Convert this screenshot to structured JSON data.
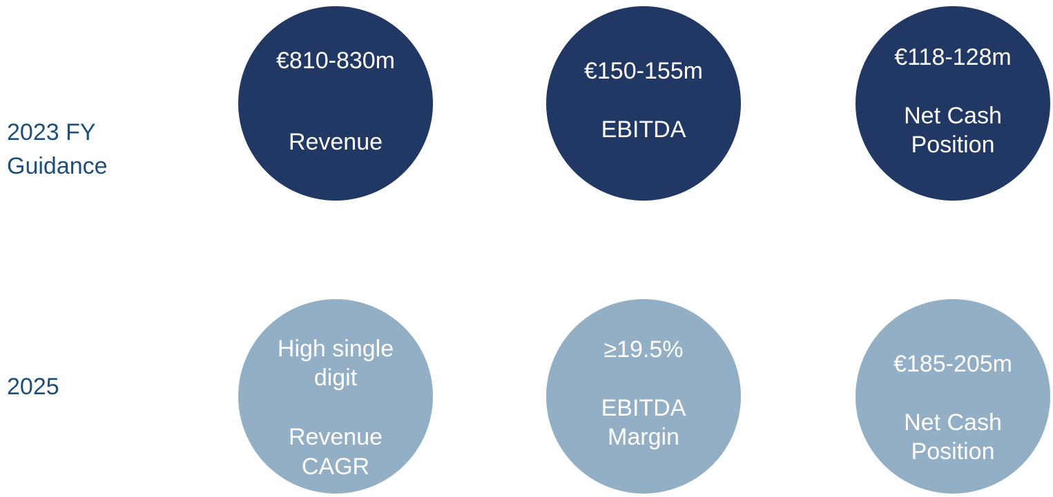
{
  "rows": [
    {
      "label": [
        "2023 FY",
        "Guidance"
      ],
      "circles": [
        {
          "value": [
            "€810-830m"
          ],
          "caption": [
            "Revenue"
          ]
        },
        {
          "value": [
            "€150-155m"
          ],
          "caption": [
            "EBITDA"
          ]
        },
        {
          "value": [
            "€118-128m"
          ],
          "caption": [
            "Net Cash",
            "Position"
          ]
        }
      ]
    },
    {
      "label": [
        "2025"
      ],
      "circles": [
        {
          "value": [
            "High single",
            "digit"
          ],
          "caption": [
            "Revenue",
            "CAGR"
          ]
        },
        {
          "value": [
            "≥19.5%"
          ],
          "caption": [
            "EBITDA",
            "Margin"
          ]
        },
        {
          "value": [
            "€185-205m"
          ],
          "caption": [
            "Net Cash",
            "Position"
          ]
        }
      ]
    }
  ]
}
